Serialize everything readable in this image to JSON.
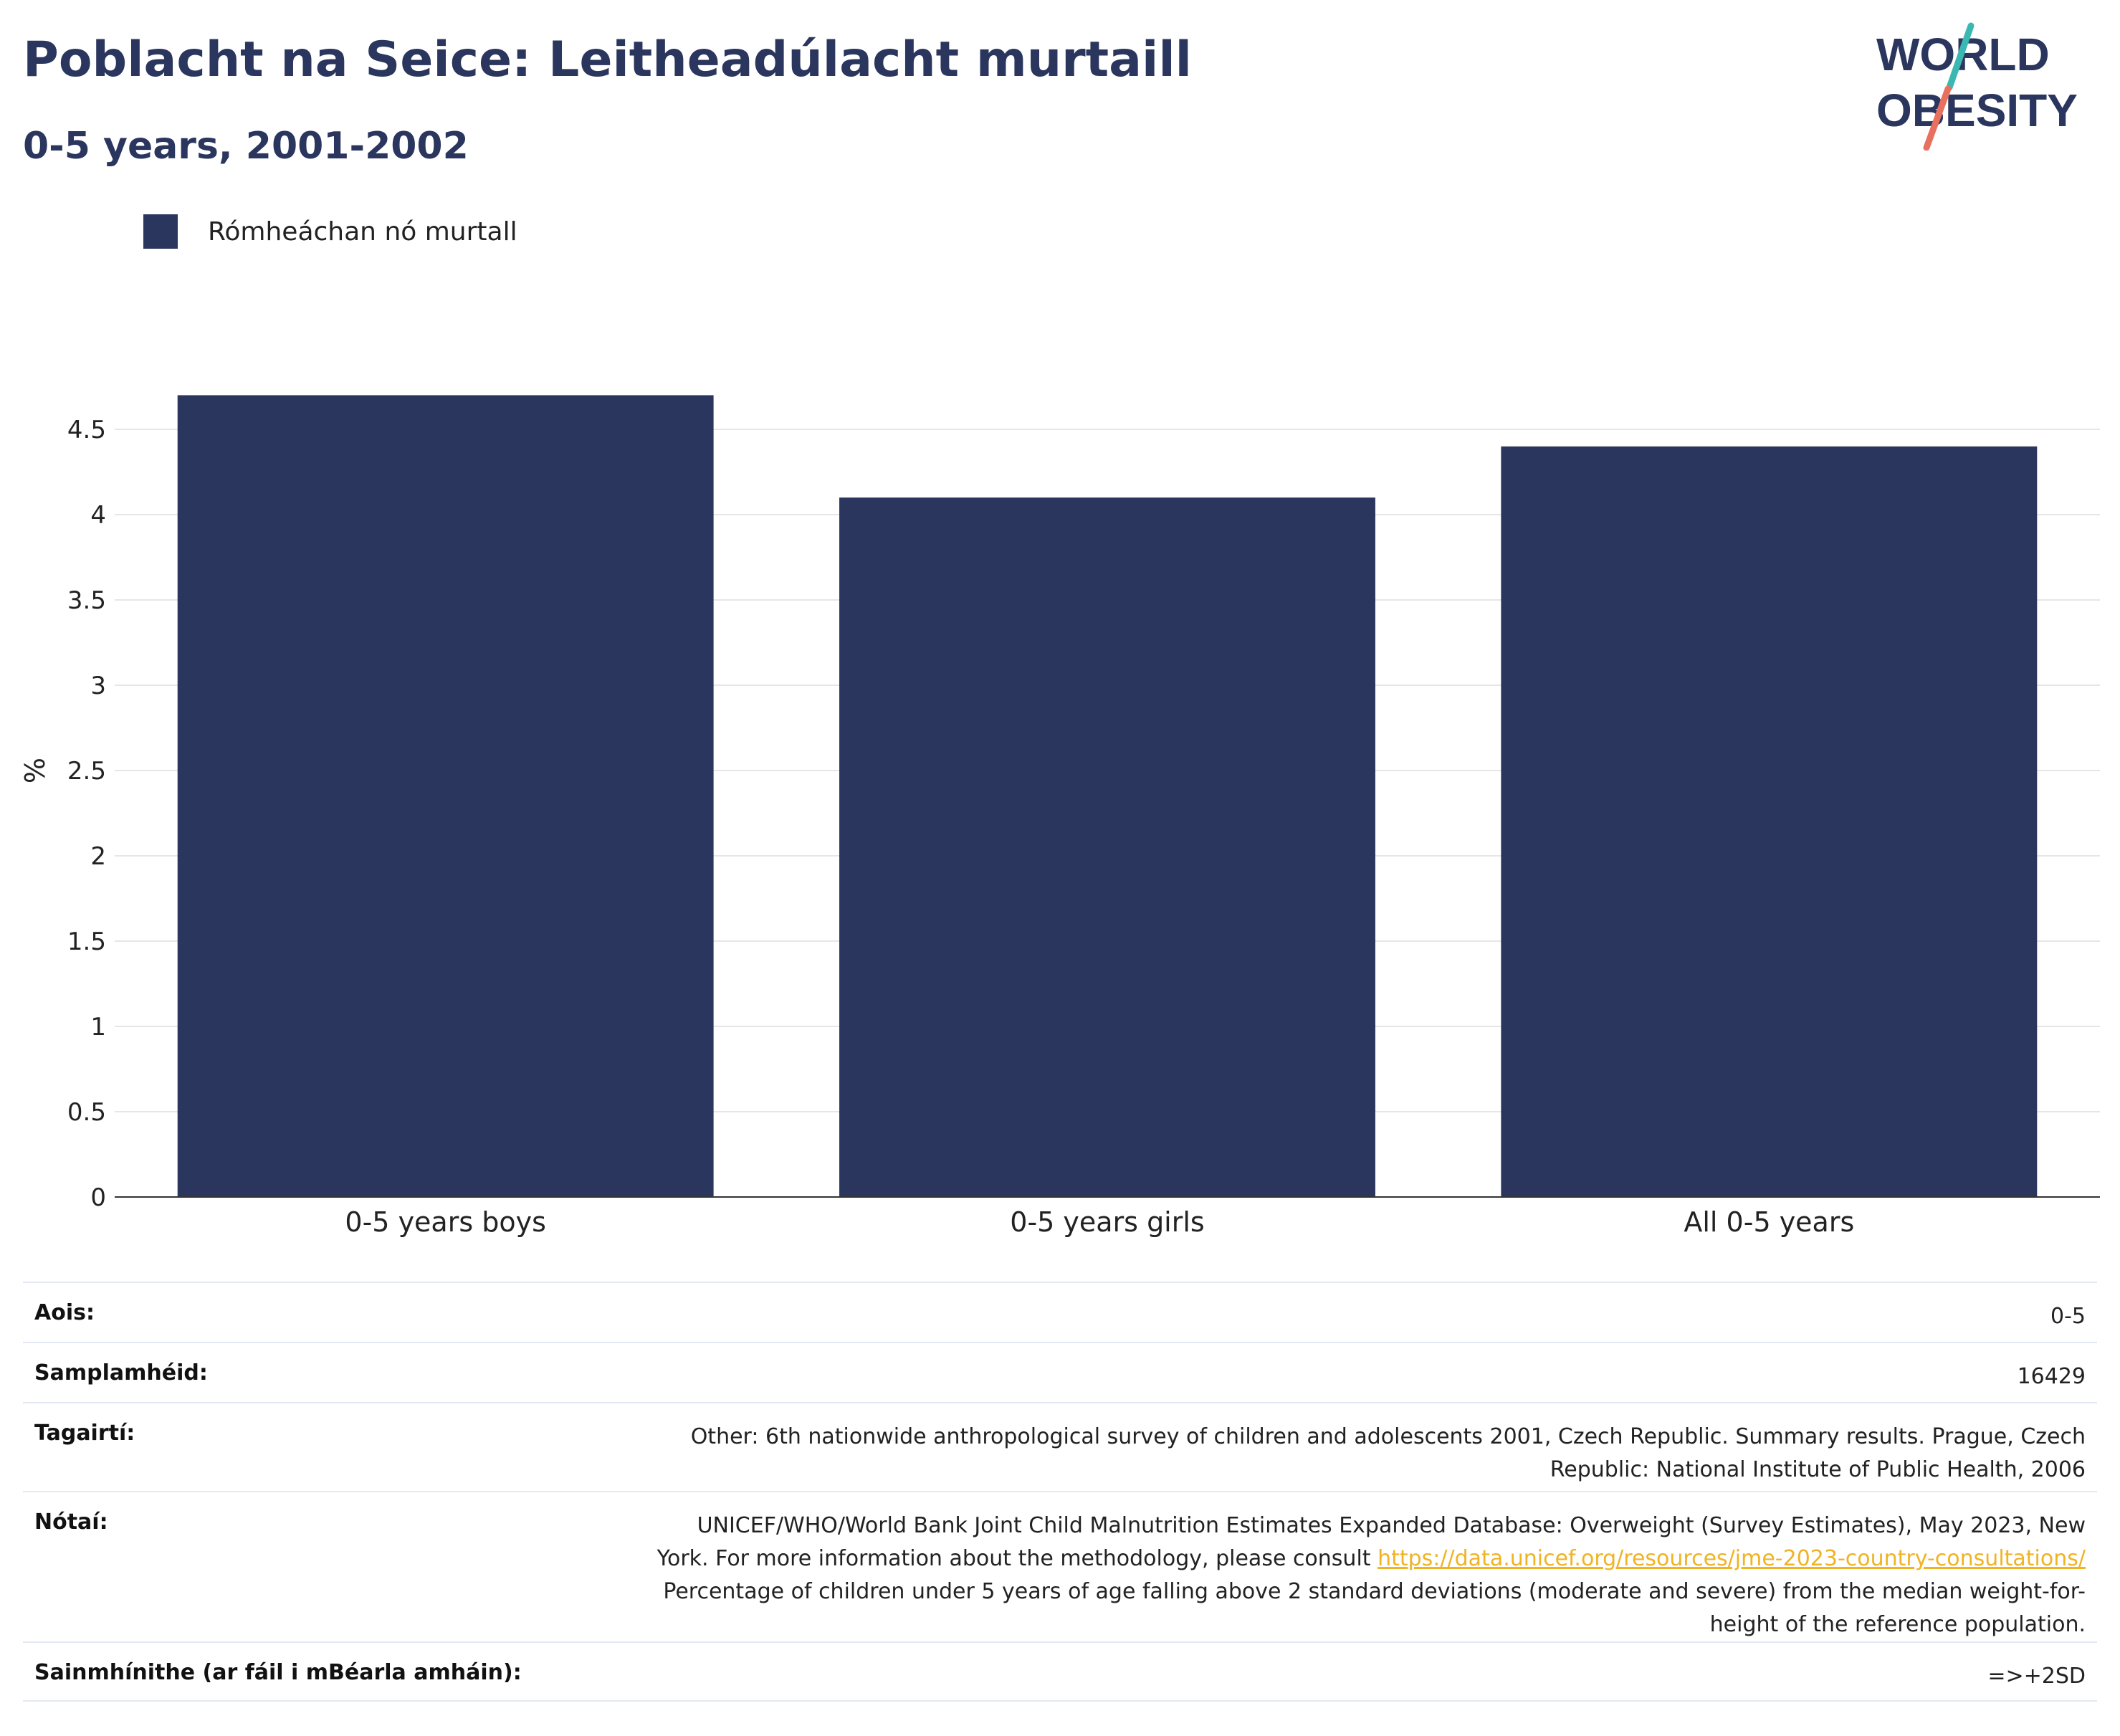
{
  "header": {
    "title": "Poblacht na Seice: Leitheadúlacht murtaill",
    "subtitle": "0-5 years, 2001-2002"
  },
  "logo": {
    "line1": "WORLD",
    "line2": "OBESITY",
    "colors": {
      "text": "#2b365e",
      "slash_top": "#3bb8b1",
      "slash_bottom": "#e8705f"
    }
  },
  "legend": {
    "label": "Rómheáchan nó murtall",
    "color": "#2b365e"
  },
  "chart_data": {
    "type": "bar",
    "categories": [
      "0-5 years boys",
      "0-5 years girls",
      "All 0-5 years"
    ],
    "series": [
      {
        "name": "Rómheáchan nó murtall",
        "values": [
          4.7,
          4.1,
          4.4
        ],
        "color": "#2b365e"
      }
    ],
    "ylabel": "%",
    "xlabel": "",
    "ylim": [
      0,
      5
    ],
    "yticks": [
      0,
      0.5,
      1,
      1.5,
      2,
      2.5,
      3,
      3.5,
      4,
      4.5
    ],
    "ytick_labels": [
      "0",
      "0.5",
      "1",
      "1.5",
      "2",
      "2.5",
      "3",
      "3.5",
      "4",
      "4.5"
    ],
    "grid": true
  },
  "meta": {
    "age": {
      "label": "Aois:",
      "value": "0-5"
    },
    "sample_size": {
      "label": "Samplamhéid:",
      "value": "16429"
    },
    "references": {
      "label": "Tagairtí:",
      "line1": "Other: 6th nationwide anthropological survey of children and adolescents 2001, Czech Republic. Summary results. Prague, Czech",
      "line2": "Republic: National Institute of Public Health, 2006"
    },
    "notes": {
      "label": "Nótaí:",
      "line1": "UNICEF/WHO/World Bank Joint Child Malnutrition Estimates Expanded Database: Overweight (Survey Estimates), May 2023, New",
      "line2_prefix": "York. For more information about the methodology, please consult ",
      "link": "https://data.unicef.org/resources/jme-2023-country-consultations/",
      "line3": "Percentage of children under 5 years of age falling above 2 standard deviations (moderate and severe) from the median weight-for-",
      "line4": "height of the reference population."
    },
    "definitions": {
      "label": "Sainmhínithe (ar fáil i mBéarla amháin):",
      "value": "=>+2SD"
    }
  }
}
